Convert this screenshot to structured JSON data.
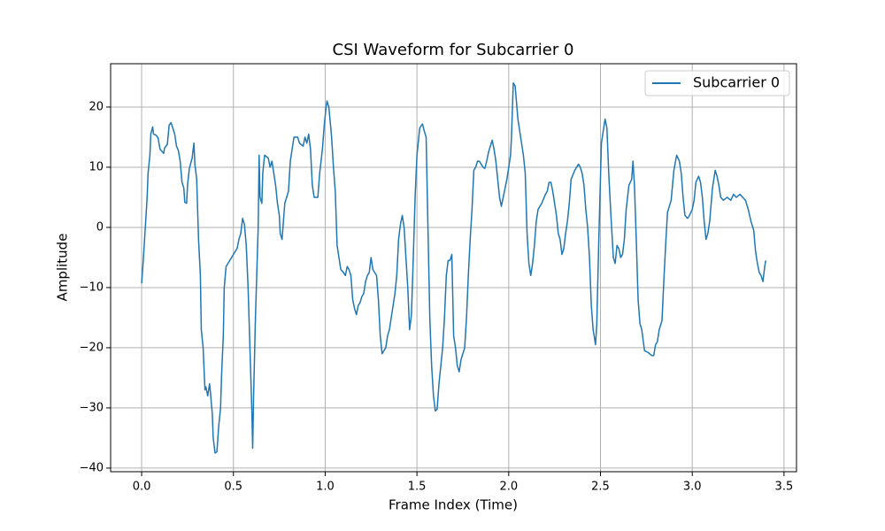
{
  "chart_data": {
    "type": "line",
    "title": "CSI Waveform for Subcarrier 0",
    "xlabel": "Frame Index (Time)",
    "ylabel": "Amplitude",
    "grid": true,
    "legend": "upper right",
    "xlim": [
      -0.169,
      3.568
    ],
    "ylim": [
      -40.6,
      27.2
    ],
    "xticks": [
      {
        "value": 0,
        "label": "0.0"
      },
      0.5,
      {
        "value": 1,
        "label": "1.0"
      },
      1.5,
      {
        "value": 2,
        "label": "2.0"
      },
      2.5,
      {
        "value": 3,
        "label": "3.0"
      },
      3.5
    ],
    "yticks": [
      {
        "value": -40,
        "label": "−40"
      },
      {
        "value": -30,
        "label": "−30"
      },
      {
        "value": -20,
        "label": "−20"
      },
      {
        "value": -10,
        "label": "−10"
      },
      0,
      10,
      20
    ],
    "x": [
      0,
      0.01,
      0.02,
      0.03,
      0.035,
      0.045,
      0.05,
      0.06,
      0.065,
      0.08,
      0.09,
      0.1,
      0.12,
      0.125,
      0.14,
      0.15,
      0.16,
      0.17,
      0.18,
      0.19,
      0.2,
      0.21,
      0.22,
      0.23,
      0.235,
      0.245,
      0.25,
      0.26,
      0.275,
      0.285,
      0.29,
      0.3,
      0.31,
      0.32,
      0.325,
      0.335,
      0.345,
      0.35,
      0.36,
      0.37,
      0.375,
      0.385,
      0.39,
      0.4,
      0.41,
      0.42,
      0.43,
      0.435,
      0.445,
      0.45,
      0.46,
      0.48,
      0.5,
      0.52,
      0.53,
      0.54,
      0.55,
      0.56,
      0.57,
      0.58,
      0.59,
      0.6,
      0.605,
      0.61,
      0.62,
      0.63,
      0.635,
      0.64,
      0.645,
      0.655,
      0.66,
      0.67,
      0.69,
      0.7,
      0.71,
      0.72,
      0.73,
      0.74,
      0.75,
      0.755,
      0.765,
      0.775,
      0.78,
      0.8,
      0.81,
      0.82,
      0.83,
      0.85,
      0.86,
      0.88,
      0.89,
      0.9,
      0.91,
      0.92,
      0.93,
      0.94,
      0.96,
      0.97,
      0.985,
      0.995,
      1.005,
      1.01,
      1.02,
      1.035,
      1.045,
      1.055,
      1.065,
      1.075,
      1.085,
      1.1,
      1.11,
      1.12,
      1.13,
      1.14,
      1.15,
      1.16,
      1.17,
      1.18,
      1.19,
      1.2,
      1.21,
      1.22,
      1.23,
      1.24,
      1.25,
      1.26,
      1.28,
      1.29,
      1.3,
      1.31,
      1.33,
      1.34,
      1.35,
      1.36,
      1.38,
      1.39,
      1.4,
      1.41,
      1.42,
      1.43,
      1.44,
      1.45,
      1.46,
      1.47,
      1.48,
      1.49,
      1.5,
      1.515,
      1.53,
      1.54,
      1.55,
      1.56,
      1.57,
      1.58,
      1.59,
      1.6,
      1.61,
      1.62,
      1.63,
      1.64,
      1.65,
      1.66,
      1.67,
      1.68,
      1.69,
      1.7,
      1.71,
      1.72,
      1.73,
      1.74,
      1.75,
      1.76,
      1.77,
      1.78,
      1.79,
      1.8,
      1.81,
      1.82,
      1.83,
      1.84,
      1.86,
      1.87,
      1.88,
      1.89,
      1.9,
      1.91,
      1.92,
      1.93,
      1.94,
      1.95,
      1.96,
      1.97,
      1.99,
      2.0,
      2.01,
      2.015,
      2.025,
      2.035,
      2.05,
      2.065,
      2.08,
      2.09,
      2.1,
      2.11,
      2.12,
      2.13,
      2.14,
      2.15,
      2.16,
      2.18,
      2.2,
      2.21,
      2.22,
      2.23,
      2.24,
      2.25,
      2.26,
      2.27,
      2.28,
      2.29,
      2.3,
      2.31,
      2.32,
      2.33,
      2.34,
      2.36,
      2.37,
      2.38,
      2.39,
      2.4,
      2.41,
      2.42,
      2.43,
      2.44,
      2.45,
      2.46,
      2.473,
      2.48,
      2.49,
      2.505,
      2.525,
      2.535,
      2.545,
      2.555,
      2.57,
      2.58,
      2.59,
      2.6,
      2.61,
      2.62,
      2.63,
      2.64,
      2.655,
      2.67,
      2.677,
      2.685,
      2.695,
      2.705,
      2.715,
      2.725,
      2.74,
      2.76,
      2.78,
      2.79,
      2.8,
      2.81,
      2.82,
      2.835,
      2.845,
      2.855,
      2.865,
      2.885,
      2.9,
      2.915,
      2.93,
      2.94,
      2.95,
      2.96,
      2.975,
      2.985,
      3.0,
      3.01,
      3.02,
      3.035,
      3.045,
      3.055,
      3.065,
      3.075,
      3.085,
      3.095,
      3.11,
      3.125,
      3.135,
      3.145,
      3.155,
      3.17,
      3.19,
      3.21,
      3.225,
      3.24,
      3.26,
      3.275,
      3.29,
      3.305,
      3.32,
      3.335,
      3.345,
      3.355,
      3.365,
      3.375,
      3.385,
      3.395,
      3.4
    ],
    "series": [
      {
        "name": "Subcarrier 0",
        "color": "#1f77b4",
        "values": [
          -9.3,
          -5,
          0,
          5,
          9,
          12,
          15.5,
          16.7,
          15.5,
          15.3,
          14.8,
          13,
          12.3,
          13.2,
          13.8,
          17,
          17.4,
          16.5,
          15.5,
          13.5,
          12.8,
          11,
          7.5,
          6.5,
          4.2,
          4,
          7,
          9.8,
          11.5,
          14,
          10.5,
          8,
          -2,
          -8,
          -17,
          -20,
          -27,
          -26.5,
          -28,
          -26,
          -27.5,
          -31,
          -35,
          -37.5,
          -37.3,
          -33,
          -30,
          -25,
          -18,
          -10,
          -6.5,
          -5.5,
          -4.5,
          -3.5,
          -2,
          -1,
          1.5,
          0.5,
          -3,
          -10,
          -20,
          -30,
          -36.7,
          -28,
          -15,
          -5,
          0,
          12,
          5,
          4,
          9,
          12,
          11.5,
          10,
          11,
          9,
          7,
          4,
          2,
          -1,
          -2,
          2,
          4,
          6,
          11,
          13,
          15,
          15,
          14,
          13.5,
          15,
          14,
          15.5,
          13,
          7,
          5,
          5,
          9,
          13,
          17,
          20,
          21,
          20,
          15,
          10,
          6,
          -3,
          -5,
          -7,
          -7.5,
          -8,
          -6.5,
          -7,
          -8,
          -12,
          -13.5,
          -14.5,
          -13,
          -12.5,
          -11.5,
          -11,
          -9,
          -8,
          -7.5,
          -5,
          -7,
          -8,
          -12,
          -18,
          -21,
          -20,
          -18,
          -17,
          -15,
          -11,
          -8,
          -2,
          0.5,
          2,
          0,
          -5,
          -10,
          -17,
          -14.5,
          -5,
          5,
          12,
          16.5,
          17.2,
          16,
          15,
          0,
          -15,
          -23,
          -28,
          -30.5,
          -30.2,
          -26,
          -23,
          -20,
          -15,
          -8,
          -5.5,
          -5.5,
          -4.5,
          -18,
          -20,
          -23,
          -24,
          -22,
          -21,
          -20,
          -15,
          -8,
          -2,
          3,
          9.5,
          10,
          11,
          11,
          10,
          9.8,
          11,
          12.5,
          13.5,
          14.5,
          13,
          11,
          8,
          5,
          3.5,
          5,
          8,
          10,
          12,
          15,
          24,
          23.5,
          18,
          15,
          12,
          9,
          -1,
          -6,
          -8,
          -6,
          -3,
          1,
          3,
          4,
          5.5,
          6,
          7.5,
          7.5,
          6,
          4,
          2,
          -1,
          -2,
          -4.5,
          -3.5,
          -1,
          1,
          4,
          8,
          9.5,
          10,
          10.5,
          10,
          9,
          7,
          3,
          0,
          -5,
          -13,
          -17,
          -19.5,
          -16,
          -3,
          14,
          18,
          16.5,
          9,
          3,
          -5,
          -6,
          -3,
          -3.5,
          -5,
          -4.5,
          -2,
          3,
          7,
          8,
          11,
          7,
          -2,
          -12,
          -16,
          -17,
          -20.5,
          -20.8,
          -21.3,
          -21.3,
          -19.5,
          -19,
          -17,
          -15.5,
          -9,
          -3,
          2.5,
          4.5,
          9.5,
          12,
          11,
          9,
          5,
          2,
          1.5,
          2,
          3,
          4.5,
          7.5,
          8.5,
          7.5,
          5,
          1,
          -2,
          -1,
          1,
          6.5,
          9.5,
          8.5,
          7,
          5,
          4.5,
          5,
          4.5,
          5.5,
          5,
          5.5,
          5,
          4.5,
          3,
          1,
          -0.5,
          -4,
          -6,
          -7.5,
          -8,
          -9,
          -6.5,
          -5.5
        ]
      }
    ]
  }
}
